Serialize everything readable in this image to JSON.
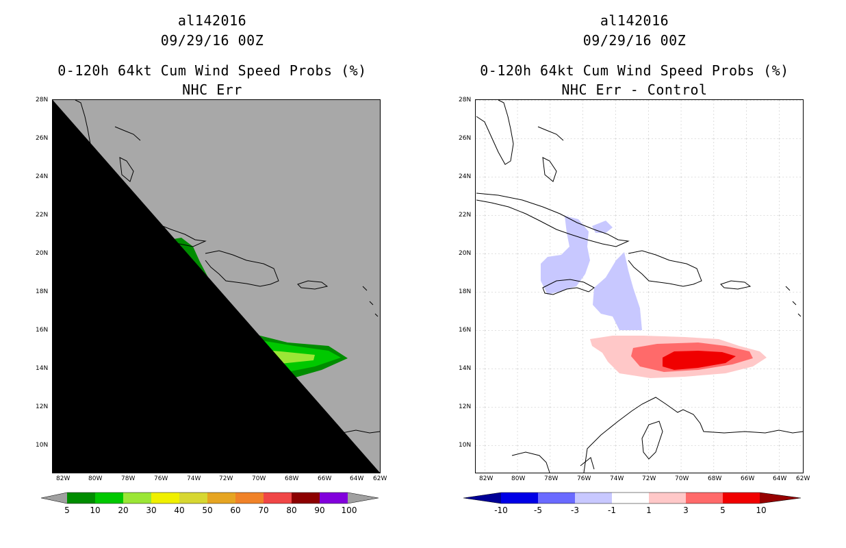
{
  "left": {
    "storm_id": "al142016",
    "datetime": "09/29/16 00Z",
    "product": "0-120h 64kt Cum Wind Speed Probs (%)",
    "subtitle": "NHC Err",
    "colorbar": {
      "labels": [
        "5",
        "10",
        "20",
        "30",
        "40",
        "50",
        "60",
        "70",
        "80",
        "90",
        "100"
      ],
      "colors": [
        "#008c00",
        "#00c800",
        "#9be636",
        "#f0f000",
        "#d7d732",
        "#e6a522",
        "#f08228",
        "#f04646",
        "#8c0000",
        "#8200dc"
      ],
      "end_color": "#a0a0a0"
    },
    "land_color": "#a8a8a8"
  },
  "right": {
    "storm_id": "al142016",
    "datetime": "09/29/16 00Z",
    "product": "0-120h 64kt Cum Wind Speed Probs (%)",
    "subtitle": "NHC Err - Control",
    "colorbar": {
      "labels": [
        "-10",
        "-5",
        "-3",
        "-1",
        "1",
        "3",
        "5",
        "10"
      ],
      "colors": [
        "#0000e6",
        "#6a6aff",
        "#c8c8ff",
        "#ffffff",
        "#ffc8c8",
        "#ff6a6a",
        "#f00000"
      ],
      "end_low": "#000096",
      "end_high": "#960000"
    }
  },
  "axes": {
    "lat_labels": [
      "28N",
      "26N",
      "24N",
      "22N",
      "20N",
      "18N",
      "16N",
      "14N",
      "12N",
      "10N"
    ],
    "lon_labels": [
      "82W",
      "80W",
      "78W",
      "76W",
      "74W",
      "72W",
      "70W",
      "68W",
      "66W",
      "64W",
      "62W"
    ]
  }
}
